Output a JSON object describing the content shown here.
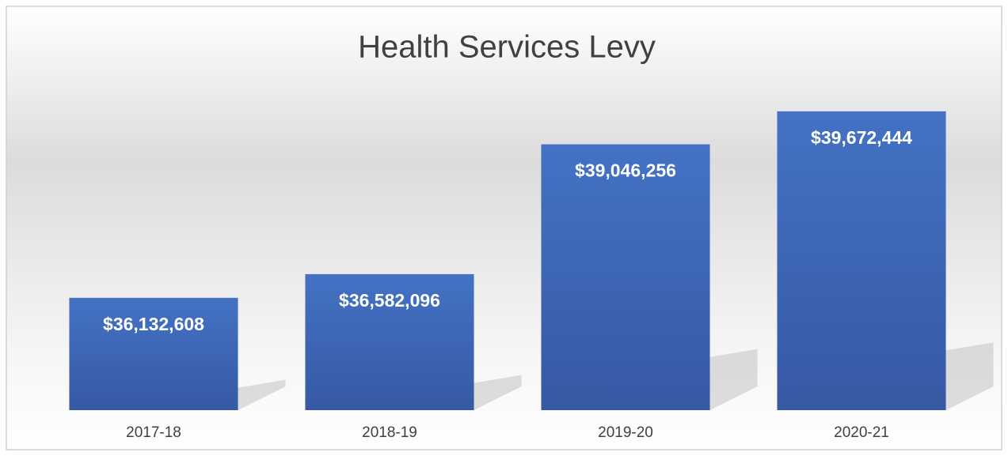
{
  "chart_data": {
    "type": "bar",
    "title": "Health Services Levy",
    "categories": [
      "2017-18",
      "2018-19",
      "2019-20",
      "2020-21"
    ],
    "values": [
      36132608,
      36582096,
      39046256,
      39672444
    ],
    "value_labels": [
      "$36,132,608",
      "$36,582,096",
      "$39,046,256",
      "$39,672,444"
    ],
    "color": "#4472c4",
    "ylim": [
      34000000,
      40000000
    ]
  }
}
